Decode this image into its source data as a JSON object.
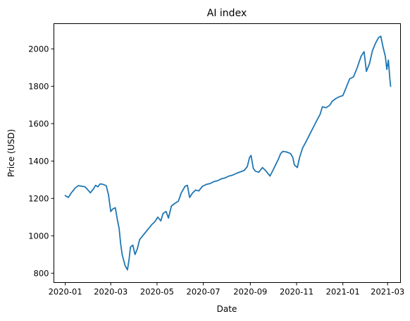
{
  "chart_data": {
    "type": "line",
    "title": "AI index",
    "xlabel": "Date",
    "ylabel": "Price (USD)",
    "grid": false,
    "legend": "none",
    "xlim": [
      "2019-12-17",
      "2021-03-18"
    ],
    "ylim": [
      750,
      2135
    ],
    "x_ticks": [
      "2020-01",
      "2020-03",
      "2020-05",
      "2020-07",
      "2020-09",
      "2020-11",
      "2021-01",
      "2021-03"
    ],
    "y_ticks": [
      800,
      1000,
      1200,
      1400,
      1600,
      1800,
      2000
    ],
    "series": [
      {
        "color": "#1f77b4",
        "points": [
          [
            "2020-01-01",
            1215
          ],
          [
            "2020-01-05",
            1205
          ],
          [
            "2020-01-09",
            1230
          ],
          [
            "2020-01-14",
            1255
          ],
          [
            "2020-01-18",
            1268
          ],
          [
            "2020-01-23",
            1265
          ],
          [
            "2020-01-27",
            1262
          ],
          [
            "2020-01-31",
            1245
          ],
          [
            "2020-02-03",
            1230
          ],
          [
            "2020-02-07",
            1250
          ],
          [
            "2020-02-10",
            1270
          ],
          [
            "2020-02-13",
            1262
          ],
          [
            "2020-02-16",
            1278
          ],
          [
            "2020-02-20",
            1275
          ],
          [
            "2020-02-24",
            1268
          ],
          [
            "2020-02-27",
            1220
          ],
          [
            "2020-03-01",
            1130
          ],
          [
            "2020-03-04",
            1145
          ],
          [
            "2020-03-07",
            1150
          ],
          [
            "2020-03-10",
            1080
          ],
          [
            "2020-03-12",
            1040
          ],
          [
            "2020-03-14",
            960
          ],
          [
            "2020-03-16",
            900
          ],
          [
            "2020-03-18",
            870
          ],
          [
            "2020-03-20",
            840
          ],
          [
            "2020-03-23",
            818
          ],
          [
            "2020-03-25",
            870
          ],
          [
            "2020-03-27",
            940
          ],
          [
            "2020-03-30",
            950
          ],
          [
            "2020-04-02",
            900
          ],
          [
            "2020-04-05",
            930
          ],
          [
            "2020-04-08",
            980
          ],
          [
            "2020-04-12",
            1000
          ],
          [
            "2020-04-16",
            1020
          ],
          [
            "2020-04-20",
            1040
          ],
          [
            "2020-04-24",
            1060
          ],
          [
            "2020-04-28",
            1075
          ],
          [
            "2020-05-02",
            1100
          ],
          [
            "2020-05-06",
            1080
          ],
          [
            "2020-05-09",
            1120
          ],
          [
            "2020-05-13",
            1130
          ],
          [
            "2020-05-16",
            1095
          ],
          [
            "2020-05-20",
            1160
          ],
          [
            "2020-05-25",
            1175
          ],
          [
            "2020-05-29",
            1185
          ],
          [
            "2020-06-02",
            1230
          ],
          [
            "2020-06-07",
            1265
          ],
          [
            "2020-06-10",
            1270
          ],
          [
            "2020-06-13",
            1205
          ],
          [
            "2020-06-17",
            1230
          ],
          [
            "2020-06-21",
            1245
          ],
          [
            "2020-06-25",
            1240
          ],
          [
            "2020-06-30",
            1265
          ],
          [
            "2020-07-05",
            1275
          ],
          [
            "2020-07-10",
            1280
          ],
          [
            "2020-07-15",
            1290
          ],
          [
            "2020-07-20",
            1295
          ],
          [
            "2020-07-25",
            1305
          ],
          [
            "2020-07-30",
            1310
          ],
          [
            "2020-08-04",
            1320
          ],
          [
            "2020-08-09",
            1325
          ],
          [
            "2020-08-14",
            1335
          ],
          [
            "2020-08-19",
            1342
          ],
          [
            "2020-08-24",
            1350
          ],
          [
            "2020-08-28",
            1370
          ],
          [
            "2020-08-31",
            1420
          ],
          [
            "2020-09-02",
            1430
          ],
          [
            "2020-09-05",
            1360
          ],
          [
            "2020-09-08",
            1345
          ],
          [
            "2020-09-12",
            1340
          ],
          [
            "2020-09-17",
            1365
          ],
          [
            "2020-09-22",
            1345
          ],
          [
            "2020-09-27",
            1320
          ],
          [
            "2020-10-02",
            1360
          ],
          [
            "2020-10-05",
            1385
          ],
          [
            "2020-10-08",
            1410
          ],
          [
            "2020-10-11",
            1440
          ],
          [
            "2020-10-14",
            1452
          ],
          [
            "2020-10-19",
            1448
          ],
          [
            "2020-10-24",
            1440
          ],
          [
            "2020-10-27",
            1420
          ],
          [
            "2020-10-29",
            1380
          ],
          [
            "2020-11-02",
            1365
          ],
          [
            "2020-11-05",
            1420
          ],
          [
            "2020-11-09",
            1470
          ],
          [
            "2020-11-13",
            1500
          ],
          [
            "2020-11-18",
            1540
          ],
          [
            "2020-11-23",
            1580
          ],
          [
            "2020-11-28",
            1620
          ],
          [
            "2020-12-02",
            1650
          ],
          [
            "2020-12-05",
            1690
          ],
          [
            "2020-12-10",
            1685
          ],
          [
            "2020-12-15",
            1700
          ],
          [
            "2020-12-18",
            1720
          ],
          [
            "2020-12-23",
            1735
          ],
          [
            "2020-12-28",
            1745
          ],
          [
            "2021-01-01",
            1750
          ],
          [
            "2021-01-06",
            1800
          ],
          [
            "2021-01-10",
            1840
          ],
          [
            "2021-01-15",
            1850
          ],
          [
            "2021-01-20",
            1900
          ],
          [
            "2021-01-25",
            1960
          ],
          [
            "2021-01-29",
            1985
          ],
          [
            "2021-02-01",
            1880
          ],
          [
            "2021-02-05",
            1920
          ],
          [
            "2021-02-09",
            1990
          ],
          [
            "2021-02-13",
            2030
          ],
          [
            "2021-02-17",
            2060
          ],
          [
            "2021-02-20",
            2068
          ],
          [
            "2021-02-23",
            2010
          ],
          [
            "2021-02-26",
            1960
          ],
          [
            "2021-02-28",
            1890
          ],
          [
            "2021-03-02",
            1940
          ],
          [
            "2021-03-04",
            1840
          ],
          [
            "2021-03-05",
            1800
          ]
        ]
      }
    ]
  }
}
